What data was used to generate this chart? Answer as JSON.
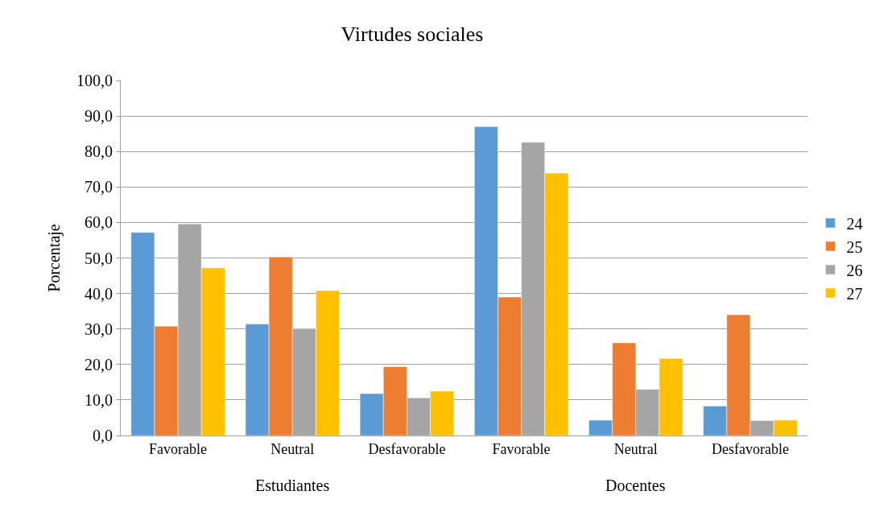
{
  "chart_data": {
    "type": "bar",
    "title": "Virtudes sociales",
    "ylabel": "Porcentaje",
    "categories": [
      "Favorable",
      "Neutral",
      "Desfavorable",
      "Favorable",
      "Neutral",
      "Desfavorable"
    ],
    "series": [
      {
        "name": "24",
        "color": "#5b9bd5",
        "values": [
          57.2,
          31.4,
          11.8,
          87.0,
          4.3,
          8.3
        ]
      },
      {
        "name": "25",
        "color": "#ed7d31",
        "values": [
          30.8,
          50.3,
          19.4,
          39.0,
          26.1,
          34.0
        ]
      },
      {
        "name": "26",
        "color": "#a5a5a5",
        "values": [
          59.6,
          30.1,
          10.6,
          82.6,
          13.0,
          4.2
        ]
      },
      {
        "name": "27",
        "color": "#ffc000",
        "values": [
          47.2,
          40.8,
          12.5,
          73.9,
          21.7,
          4.3
        ]
      }
    ],
    "annotations": [
      "Estudiantes",
      "Docentes"
    ],
    "ylim": [
      0,
      100
    ],
    "yticks": [
      {
        "value": 0,
        "label": "0,0"
      },
      {
        "value": 10,
        "label": "10,0"
      },
      {
        "value": 20,
        "label": "20,0"
      },
      {
        "value": 30,
        "label": "30,0"
      },
      {
        "value": 40,
        "label": "40,0"
      },
      {
        "value": 50,
        "label": "50,0"
      },
      {
        "value": 60,
        "label": "60,0"
      },
      {
        "value": 70,
        "label": "70,0"
      },
      {
        "value": 80,
        "label": "80,0"
      },
      {
        "value": 90,
        "label": "90,0"
      },
      {
        "value": 100,
        "label": "100,0"
      }
    ],
    "grid": "y",
    "legend": "right"
  }
}
